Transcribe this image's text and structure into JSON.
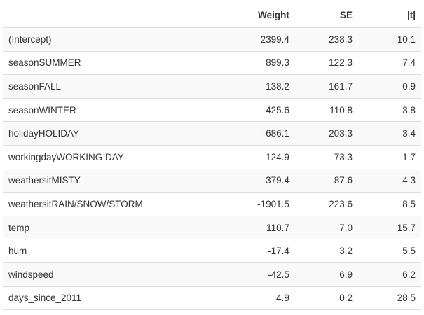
{
  "table": {
    "headers": [
      "",
      "Weight",
      "SE",
      "|t|"
    ],
    "rows": [
      {
        "name": "(Intercept)",
        "weight": "2399.4",
        "se": "238.3",
        "t": "10.1"
      },
      {
        "name": "seasonSUMMER",
        "weight": "899.3",
        "se": "122.3",
        "t": "7.4"
      },
      {
        "name": "seasonFALL",
        "weight": "138.2",
        "se": "161.7",
        "t": "0.9"
      },
      {
        "name": "seasonWINTER",
        "weight": "425.6",
        "se": "110.8",
        "t": "3.8"
      },
      {
        "name": "holidayHOLIDAY",
        "weight": "-686.1",
        "se": "203.3",
        "t": "3.4"
      },
      {
        "name": "workingdayWORKING DAY",
        "weight": "124.9",
        "se": "73.3",
        "t": "1.7"
      },
      {
        "name": "weathersitMISTY",
        "weight": "-379.4",
        "se": "87.6",
        "t": "4.3"
      },
      {
        "name": "weathersitRAIN/SNOW/STORM",
        "weight": "-1901.5",
        "se": "223.6",
        "t": "8.5"
      },
      {
        "name": "temp",
        "weight": "110.7",
        "se": "7.0",
        "t": "15.7"
      },
      {
        "name": "hum",
        "weight": "-17.4",
        "se": "3.2",
        "t": "5.5"
      },
      {
        "name": "windspeed",
        "weight": "-42.5",
        "se": "6.9",
        "t": "6.2"
      },
      {
        "name": "days_since_2011",
        "weight": "4.9",
        "se": "0.2",
        "t": "28.5"
      }
    ]
  }
}
